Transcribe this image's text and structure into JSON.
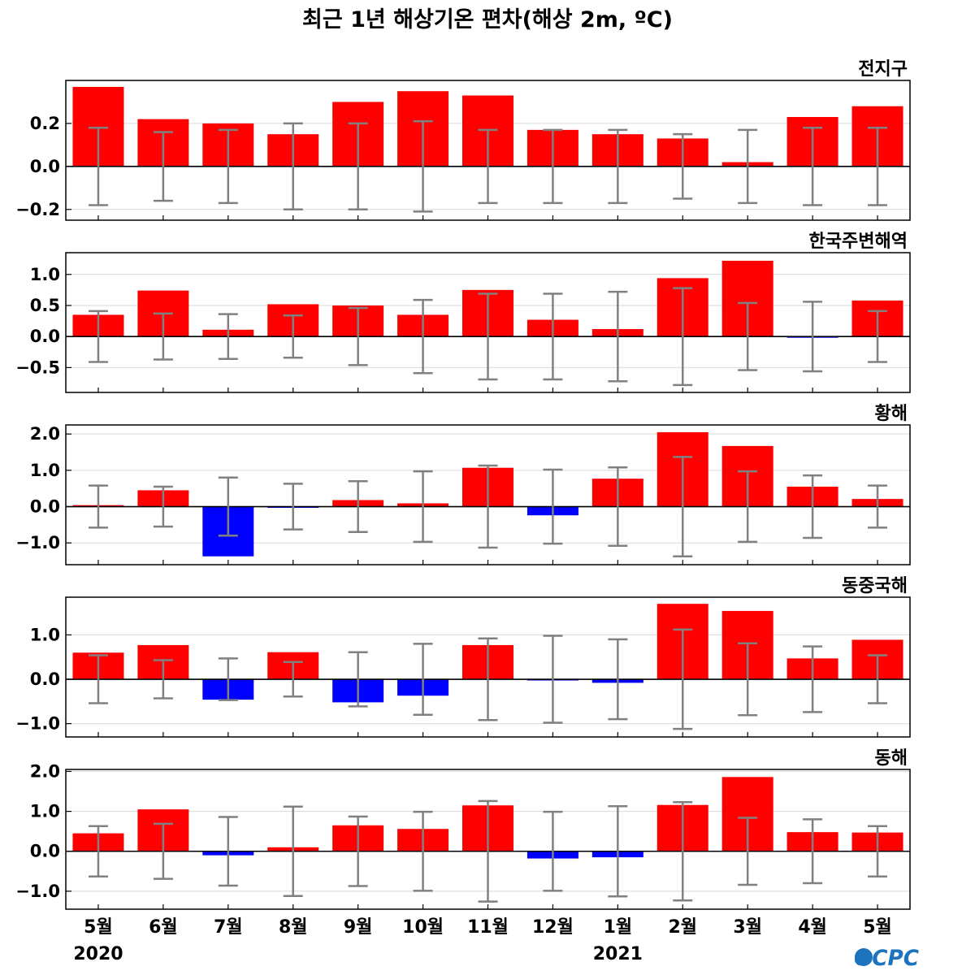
{
  "title": "최근 1년 해상기온 편차(해상 2m, ºC)",
  "logo": "OCPC",
  "colors": {
    "positive": "#ff0000",
    "negative": "#0000ff",
    "errorbar": "#808080",
    "grid": "#d9d9d9",
    "zero": "#000000"
  },
  "chart_data": {
    "type": "bar",
    "title": "최근 1년 해상기온 편차(해상 2m, ºC)",
    "categories": [
      "5월",
      "6월",
      "7월",
      "8월",
      "9월",
      "10월",
      "11월",
      "12월",
      "1월",
      "2월",
      "3월",
      "4월",
      "5월"
    ],
    "years": [
      {
        "label": "2020",
        "index": 0
      },
      {
        "label": "2021",
        "index": 8
      }
    ],
    "panels": [
      {
        "name": "전지구",
        "ylim": [
          -0.25,
          0.4
        ],
        "yticks": [
          -0.2,
          0.0,
          0.2
        ],
        "ytick_labels": [
          "−0.2",
          "0.0",
          "0.2"
        ],
        "values": [
          0.37,
          0.22,
          0.2,
          0.15,
          0.3,
          0.35,
          0.33,
          0.17,
          0.15,
          0.13,
          0.02,
          0.23,
          0.28
        ],
        "error": [
          0.18,
          0.16,
          0.17,
          0.2,
          0.2,
          0.21,
          0.17,
          0.17,
          0.17,
          0.15,
          0.17,
          0.18,
          0.18
        ]
      },
      {
        "name": "한국주변해역",
        "ylim": [
          -0.9,
          1.35
        ],
        "yticks": [
          -0.5,
          0.0,
          0.5,
          1.0
        ],
        "ytick_labels": [
          "−0.5",
          "0.0",
          "0.5",
          "1.0"
        ],
        "values": [
          0.35,
          0.74,
          0.11,
          0.52,
          0.5,
          0.35,
          0.75,
          0.27,
          0.12,
          0.94,
          1.22,
          -0.01,
          0.58
        ],
        "error": [
          0.41,
          0.37,
          0.36,
          0.34,
          0.46,
          0.59,
          0.69,
          0.69,
          0.72,
          0.78,
          0.54,
          0.56,
          0.41
        ]
      },
      {
        "name": "황해",
        "ylim": [
          -1.6,
          2.25
        ],
        "yticks": [
          -1.0,
          0.0,
          1.0,
          2.0
        ],
        "ytick_labels": [
          "−1.0",
          "0.0",
          "1.0",
          "2.0"
        ],
        "values": [
          0.04,
          0.45,
          -1.37,
          -0.02,
          0.18,
          0.09,
          1.07,
          -0.24,
          0.77,
          2.05,
          1.67,
          0.55,
          0.21
        ],
        "error": [
          0.58,
          0.55,
          0.8,
          0.63,
          0.7,
          0.97,
          1.13,
          1.02,
          1.08,
          1.37,
          0.97,
          0.86,
          0.58
        ]
      },
      {
        "name": "동중국해",
        "ylim": [
          -1.3,
          1.85
        ],
        "yticks": [
          -1.0,
          0.0,
          1.0
        ],
        "ytick_labels": [
          "−1.0",
          "0.0",
          "1.0"
        ],
        "values": [
          0.6,
          0.77,
          -0.46,
          0.61,
          -0.52,
          -0.37,
          0.77,
          -0.01,
          -0.08,
          1.7,
          1.54,
          0.47,
          0.89
        ],
        "error": [
          0.54,
          0.43,
          0.47,
          0.39,
          0.61,
          0.8,
          0.92,
          0.98,
          0.9,
          1.12,
          0.81,
          0.74,
          0.54
        ]
      },
      {
        "name": "동해",
        "ylim": [
          -1.45,
          2.05
        ],
        "yticks": [
          -1.0,
          0.0,
          1.0,
          2.0
        ],
        "ytick_labels": [
          "−1.0",
          "0.0",
          "1.0",
          "2.0"
        ],
        "values": [
          0.45,
          1.05,
          -0.1,
          0.1,
          0.65,
          0.56,
          1.15,
          -0.18,
          -0.15,
          1.16,
          1.86,
          0.48,
          0.47
        ],
        "error": [
          0.63,
          0.69,
          0.86,
          1.12,
          0.87,
          0.99,
          1.26,
          0.99,
          1.13,
          1.23,
          0.84,
          0.8,
          0.63
        ]
      }
    ]
  }
}
